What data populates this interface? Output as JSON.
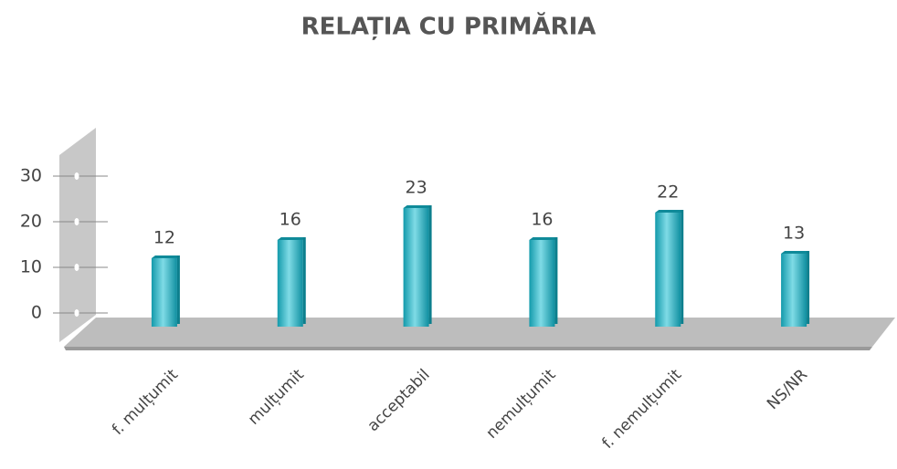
{
  "chart_data": {
    "type": "bar",
    "title": "RELAȚIA CU PRIMĂRIA",
    "categories": [
      "f. mulțumit",
      "mulțumit",
      "acceptabil",
      "nemulțumit",
      "f. nemulțumit",
      "NS/NR"
    ],
    "values": [
      12,
      16,
      23,
      16,
      22,
      13
    ],
    "color": "#1aa6b7",
    "ylim": [
      0,
      30
    ],
    "yticks": [
      0,
      10,
      20,
      30
    ]
  }
}
